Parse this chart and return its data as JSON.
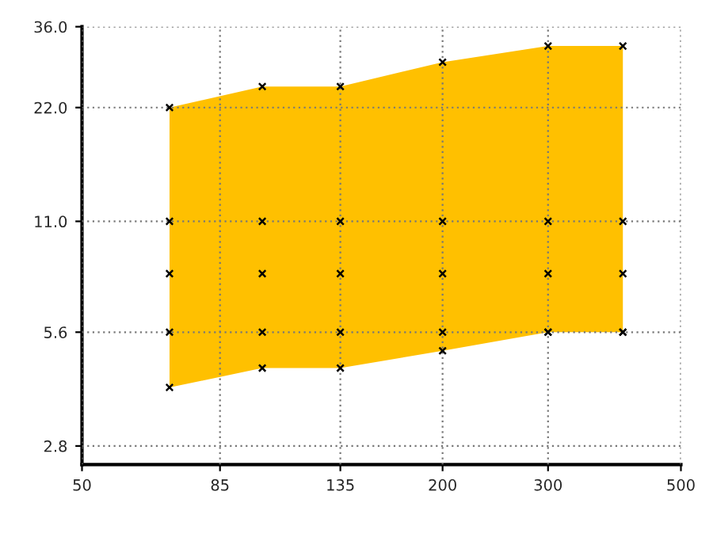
{
  "chart_data": {
    "type": "scatter",
    "log": "xy",
    "x": [
      70,
      100,
      135,
      200,
      300,
      400
    ],
    "series": [
      {
        "values": [
          4.0,
          4.5,
          4.5,
          5.0,
          5.6,
          5.6
        ],
        "color": "#000000",
        "marker": "cross"
      },
      {
        "type": "area",
        "values": [
          22,
          25,
          25,
          29,
          32,
          32
        ],
        "color": "#ffc000",
        "marker": "cross"
      },
      {
        "values": [
          11,
          11,
          11,
          11,
          11,
          11
        ],
        "color": "#000000",
        "marker": "cross"
      },
      {
        "values": [
          8,
          8,
          8,
          8,
          8,
          8
        ],
        "color": "#000000",
        "marker": "cross"
      },
      {
        "values": [
          5.6,
          5.6,
          5.6,
          5.6,
          5.6,
          5.6
        ],
        "color": "#000000",
        "marker": "cross"
      }
    ],
    "xlim": [
      50,
      500
    ],
    "xticks": [
      50,
      85,
      135,
      200,
      300,
      500
    ],
    "ylim": [
      2.5,
      36
    ],
    "yticks": [
      {
        "value": 2.8,
        "label": "2.8"
      },
      5.6,
      {
        "value": 11,
        "label": "11.0"
      },
      {
        "value": 22,
        "label": "22.0"
      },
      {
        "value": 36,
        "label": "36.0"
      }
    ],
    "grid": true
  }
}
